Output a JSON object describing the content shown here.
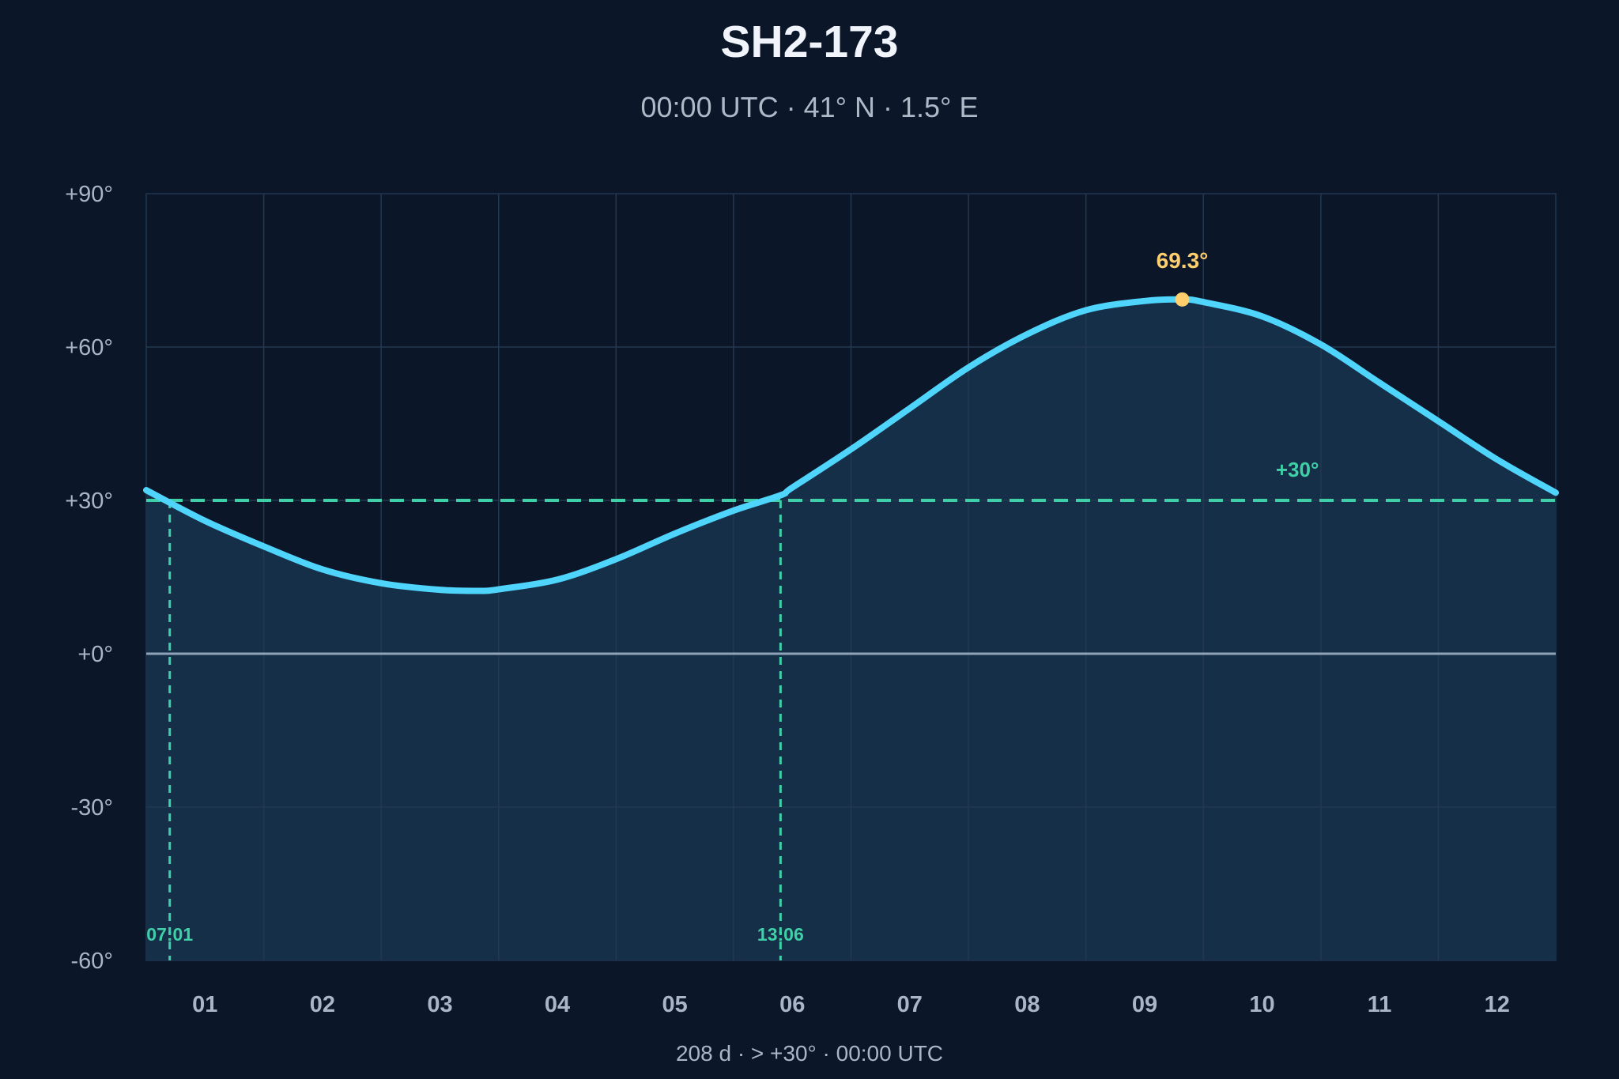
{
  "chart_data": {
    "type": "line",
    "title": "SH2-173",
    "subtitle": "00:00 UTC · 41° N · 1.5° E",
    "categories": [
      "01",
      "02",
      "03",
      "04",
      "05",
      "06",
      "07",
      "08",
      "09",
      "10",
      "11",
      "12"
    ],
    "y_ticks": [
      "+90°",
      "+60°",
      "+30°",
      "+0°",
      "-30°",
      "-60°"
    ],
    "y_tick_values": [
      90,
      60,
      30,
      0,
      -30,
      -60
    ],
    "ylim": [
      -60,
      90
    ],
    "xlim_months": [
      0.5,
      12.5
    ],
    "series": [
      {
        "x": [
          0.5,
          1.0,
          1.5,
          2.0,
          2.5,
          3.0,
          3.35,
          3.5,
          4.0,
          4.5,
          5.0,
          5.5,
          5.9,
          6.0,
          6.5,
          7.0,
          7.5,
          8.0,
          8.5,
          9.0,
          9.32,
          9.5,
          10.0,
          10.5,
          11.0,
          11.5,
          12.0,
          12.5
        ],
        "y": [
          32.0,
          26.0,
          21.0,
          16.5,
          13.8,
          12.5,
          12.3,
          12.6,
          14.5,
          18.5,
          23.5,
          28.0,
          31.0,
          32.5,
          40.0,
          48.0,
          56.0,
          62.5,
          67.2,
          69.0,
          69.3,
          68.8,
          66.0,
          60.5,
          53.0,
          45.5,
          38.0,
          31.5
        ]
      }
    ],
    "threshold": {
      "value": 30,
      "label": "+30°"
    },
    "crossings": [
      {
        "x": 0.7,
        "label": "07:01"
      },
      {
        "x": 5.9,
        "label": "13:06"
      }
    ],
    "peak": {
      "x": 9.32,
      "y": 69.3,
      "label": "69.3°"
    },
    "footer": "208 d  ·  > +30°  ·  00:00 UTC",
    "grid": true,
    "colors": {
      "background": "#0b1628",
      "plot_fill": "#16304a",
      "curve": "#4fd4fb",
      "threshold": "#3fd0a8",
      "peak": "#ffcf6e",
      "zero_line": "#8fa3b8",
      "grid": "#243851"
    }
  }
}
